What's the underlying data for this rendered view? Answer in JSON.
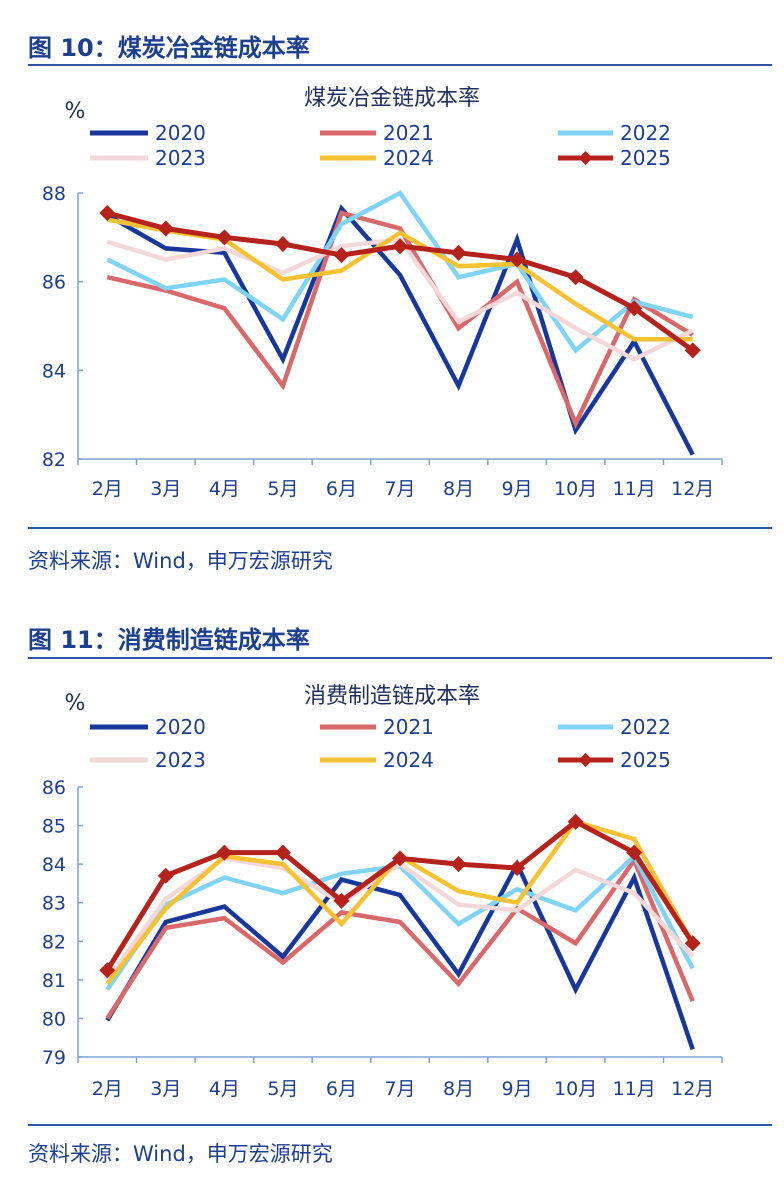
{
  "figures": [
    {
      "figure_title": "图 10：煤炭冶金链成本率",
      "source": "资料来源：Wind，申万宏源研究"
    },
    {
      "figure_title": "图 11：消费制造链成本率",
      "source": "资料来源：Wind，申万宏源研究"
    }
  ],
  "chart_data": [
    {
      "type": "line",
      "title": "煤炭冶金链成本率",
      "ylabel": "%",
      "xlabel": "",
      "categories": [
        "2月",
        "3月",
        "4月",
        "5月",
        "6月",
        "7月",
        "8月",
        "9月",
        "10月",
        "11月",
        "12月"
      ],
      "ylim": [
        82,
        88
      ],
      "yticks": [
        82,
        84,
        86,
        88
      ],
      "grid": false,
      "legend": "top",
      "series": [
        {
          "name": "2020",
          "color": "#17379b",
          "values": [
            87.5,
            86.75,
            86.65,
            84.25,
            87.65,
            86.15,
            83.65,
            86.95,
            82.65,
            84.65,
            82.1
          ]
        },
        {
          "name": "2021",
          "color": "#d9686a",
          "values": [
            86.1,
            85.8,
            85.4,
            83.65,
            87.55,
            87.2,
            84.95,
            86.0,
            82.8,
            85.6,
            84.8
          ]
        },
        {
          "name": "2022",
          "color": "#7fd3f5",
          "values": [
            86.5,
            85.85,
            86.05,
            85.15,
            87.3,
            88.0,
            86.1,
            86.4,
            84.45,
            85.55,
            85.2
          ]
        },
        {
          "name": "2023",
          "color": "#f4d7d8",
          "values": [
            86.9,
            86.5,
            86.75,
            86.2,
            86.8,
            86.95,
            85.1,
            85.75,
            84.95,
            84.25,
            84.9
          ]
        },
        {
          "name": "2024",
          "color": "#f6c233",
          "values": [
            87.4,
            87.15,
            86.95,
            86.05,
            86.25,
            87.1,
            86.35,
            86.4,
            85.5,
            84.7,
            84.7
          ]
        },
        {
          "name": "2025",
          "color": "#b5211b",
          "marker": "diamond",
          "values": [
            87.55,
            87.2,
            87.0,
            86.85,
            86.6,
            86.8,
            86.65,
            86.5,
            86.1,
            85.4,
            84.45
          ]
        }
      ]
    },
    {
      "type": "line",
      "title": "消费制造链成本率",
      "ylabel": "%",
      "xlabel": "",
      "categories": [
        "2月",
        "3月",
        "4月",
        "5月",
        "6月",
        "7月",
        "8月",
        "9月",
        "10月",
        "11月",
        "12月"
      ],
      "ylim": [
        79,
        86
      ],
      "yticks": [
        79,
        80,
        81,
        82,
        83,
        84,
        85,
        86
      ],
      "grid": false,
      "legend": "top",
      "series": [
        {
          "name": "2020",
          "color": "#17379b",
          "values": [
            79.95,
            82.5,
            82.9,
            81.6,
            83.6,
            83.2,
            81.15,
            84.0,
            80.75,
            83.65,
            79.2
          ]
        },
        {
          "name": "2021",
          "color": "#d9686a",
          "values": [
            80.0,
            82.35,
            82.6,
            81.45,
            82.75,
            82.5,
            80.9,
            82.85,
            81.95,
            84.1,
            80.45
          ]
        },
        {
          "name": "2022",
          "color": "#7fd3f5",
          "values": [
            80.75,
            82.95,
            83.65,
            83.25,
            83.75,
            83.95,
            82.45,
            83.35,
            82.8,
            84.2,
            81.3
          ]
        },
        {
          "name": "2023",
          "color": "#f4d7d8",
          "values": [
            81.0,
            83.1,
            84.15,
            83.9,
            83.0,
            84.0,
            82.95,
            82.8,
            83.85,
            83.25,
            81.6
          ]
        },
        {
          "name": "2024",
          "color": "#f6c233",
          "values": [
            80.9,
            82.85,
            84.2,
            84.0,
            82.45,
            84.2,
            83.3,
            83.0,
            85.1,
            84.65,
            81.95
          ]
        },
        {
          "name": "2025",
          "color": "#b5211b",
          "marker": "diamond",
          "values": [
            81.25,
            83.7,
            84.3,
            84.3,
            83.05,
            84.15,
            84.0,
            83.9,
            85.1,
            84.3,
            81.95
          ]
        }
      ]
    }
  ]
}
